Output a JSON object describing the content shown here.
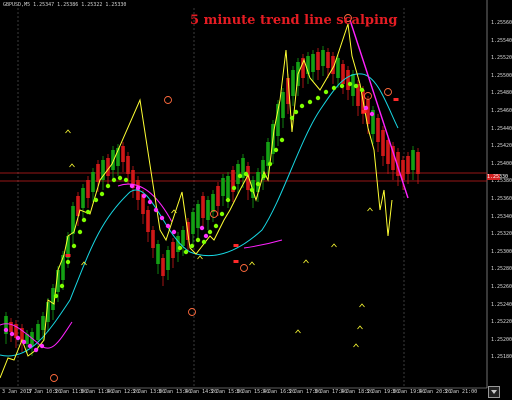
{
  "chart": {
    "symbol_info": "GBPUSD,M5  1.25347 1.25386 1.25322 1.25330",
    "title": "5 minute trend line scalping",
    "price_axis": [
      "1.25560",
      "1.25540",
      "1.25520",
      "1.25500",
      "1.25480",
      "1.25460",
      "1.25440",
      "1.25420",
      "1.25400",
      "1.25380",
      "1.25360",
      "1.25340",
      "1.25320",
      "1.25300",
      "1.25280",
      "1.25260",
      "1.25240",
      "1.25220",
      "1.25200",
      "1.25180"
    ],
    "current_price": "1.25330",
    "time_axis": [
      "3 Jan 2017",
      "3 Jan 10:20",
      "3 Jan 11:00",
      "3 Jan 11:40",
      "3 Jan 12:20",
      "3 Jan 13:00",
      "3 Jan 13:40",
      "3 Jan 14:20",
      "3 Jan 15:00",
      "3 Jan 15:40",
      "3 Jan 16:20",
      "3 Jan 17:00",
      "3 Jan 17:40",
      "3 Jan 18:20",
      "3 Jan 19:00",
      "3 Jan 19:40",
      "3 Jan 20:20",
      "3 Jan 21:00"
    ],
    "colors": {
      "background": "#000000",
      "bull_candle": "#14a014",
      "bear_candle": "#d01818",
      "zigzag": "#ffff33",
      "trend_line": "#ff22ff",
      "ma_line": "#17d7e3",
      "dot_up": "#7fff00",
      "dot_down": "#ff33ff",
      "title": "#e51c23",
      "horizontal_level": "#c81e1e",
      "grid": "#666666"
    }
  }
}
